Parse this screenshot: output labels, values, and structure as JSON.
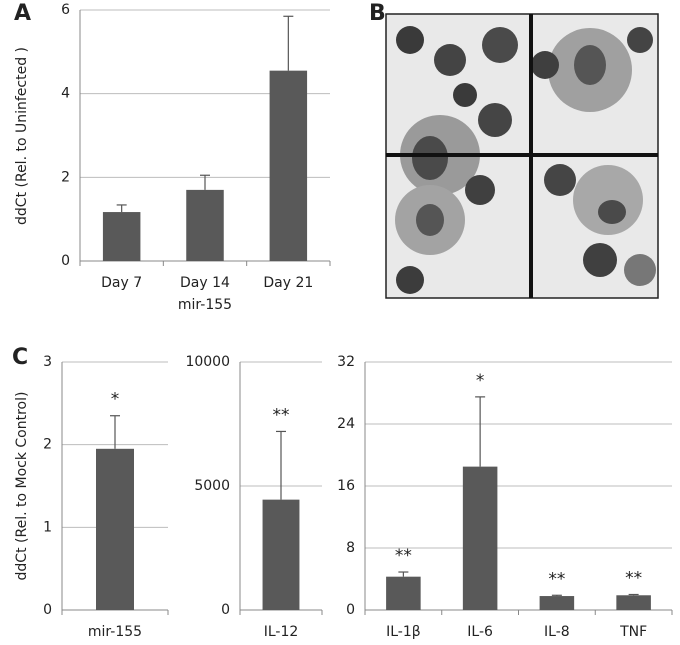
{
  "chart_data": [
    {
      "type": "bar",
      "panel_label": "A",
      "ylabel": "ddCt (Rel. to Uninfected )",
      "xlabel": "mir-155",
      "categories": [
        "Day 7",
        "Day 14",
        "Day 21"
      ],
      "values": [
        1.17,
        1.7,
        4.55
      ],
      "errors": [
        0.17,
        0.35,
        1.3
      ],
      "color": "#595959",
      "ylim": [
        0,
        6
      ],
      "yticks": [
        0,
        2,
        4,
        6
      ],
      "grid": true
    },
    {
      "type": "bar",
      "panel_label": "C",
      "ylabel": "ddCt (Rel. to Mock Control)",
      "categories": [
        "mir-155"
      ],
      "values": [
        1.95
      ],
      "errors": [
        0.4
      ],
      "annotations": [
        "*"
      ],
      "color": "#595959",
      "ylim": [
        0,
        3
      ],
      "yticks": [
        0,
        1,
        2,
        3
      ],
      "grid": true
    },
    {
      "type": "bar",
      "categories": [
        "IL-12"
      ],
      "values": [
        4450
      ],
      "errors": [
        2750
      ],
      "annotations": [
        "**"
      ],
      "color": "#595959",
      "ylim": [
        0,
        10000
      ],
      "yticks": [
        0,
        5000,
        10000
      ],
      "grid": true
    },
    {
      "type": "bar",
      "categories": [
        "IL-1β",
        "IL-6",
        "IL-8",
        "TNF"
      ],
      "values": [
        4.3,
        18.5,
        1.8,
        1.9
      ],
      "errors": [
        0.6,
        9,
        0.1,
        0.1
      ],
      "annotations": [
        "**",
        "*",
        "**",
        "**"
      ],
      "color": "#595959",
      "ylim": [
        0,
        32
      ],
      "yticks": [
        0,
        8,
        16,
        24,
        32
      ],
      "grid": true
    }
  ],
  "panel_b": {
    "label": "B"
  }
}
